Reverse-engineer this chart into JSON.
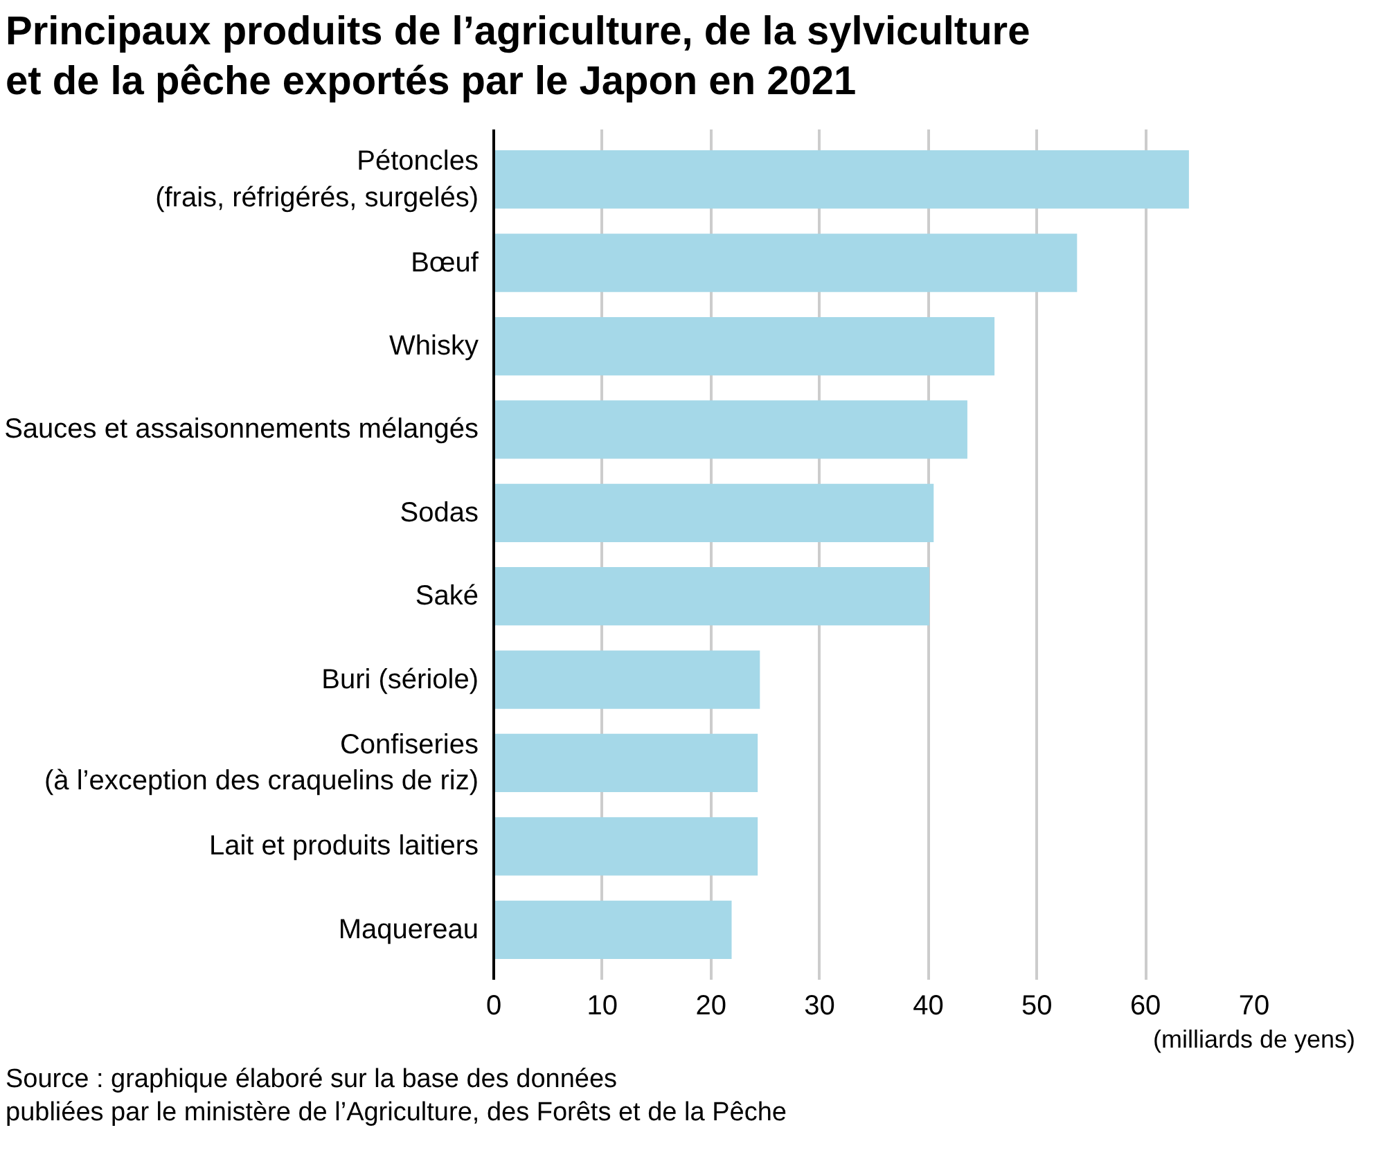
{
  "chart_data": {
    "type": "bar",
    "orientation": "horizontal",
    "title": "Principaux produits de l’agriculture, de la sylviculture\net de la pêche exportés par le Japon en 2021",
    "xlabel": "(milliards de yens)",
    "categories": [
      "Pétoncles\n(frais, réfrigérés, surgelés)",
      "Bœuf",
      "Whisky",
      "Sauces et assaisonnements mélangés",
      "Sodas",
      "Saké",
      "Buri (sériole)",
      "Confiseries\n(à l’exception des craquelins de riz)",
      "Lait et produits laitiers",
      "Maquereau"
    ],
    "values": [
      64,
      53.7,
      46.1,
      43.6,
      40.5,
      40.1,
      24.5,
      24.3,
      24.3,
      21.9
    ],
    "color": "#a5d8e8",
    "xlim": [
      0,
      70
    ],
    "xticks": [
      0,
      10,
      20,
      30,
      40,
      50,
      60,
      70
    ],
    "grid": "x",
    "annotations": [
      "Source : graphique élaboré sur la base des données\npubliées par le ministère de l’Agriculture, des Forêts et de la Pêche"
    ]
  }
}
